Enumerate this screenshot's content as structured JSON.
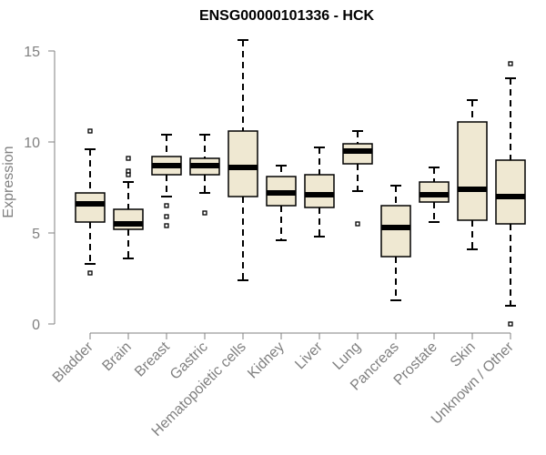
{
  "chart_data": {
    "type": "box",
    "title": "ENSG00000101336 - HCK",
    "xlabel": "",
    "ylabel": "Expression",
    "ylim": [
      0,
      15
    ],
    "yticks": [
      0,
      5,
      10,
      15
    ],
    "categories": [
      "Bladder",
      "Brain",
      "Breast",
      "Gastric",
      "Hematopoietic cells",
      "Kidney",
      "Liver",
      "Lung",
      "Pancreas",
      "Prostate",
      "Skin",
      "Unknown / Other"
    ],
    "boxes": [
      {
        "category": "Bladder",
        "whisker_low": 3.3,
        "q1": 5.6,
        "median": 6.6,
        "q3": 7.2,
        "whisker_high": 9.6,
        "outliers": [
          10.6,
          2.8
        ]
      },
      {
        "category": "Brain",
        "whisker_low": 3.6,
        "q1": 5.2,
        "median": 5.5,
        "q3": 6.3,
        "whisker_high": 7.8,
        "outliers": [
          9.1,
          8.4,
          8.2
        ]
      },
      {
        "category": "Breast",
        "whisker_low": 7.0,
        "q1": 8.2,
        "median": 8.7,
        "q3": 9.2,
        "whisker_high": 10.4,
        "outliers": [
          6.5,
          5.9,
          5.4
        ]
      },
      {
        "category": "Gastric",
        "whisker_low": 7.2,
        "q1": 8.2,
        "median": 8.7,
        "q3": 9.1,
        "whisker_high": 10.4,
        "outliers": [
          6.1
        ]
      },
      {
        "category": "Hematopoietic cells",
        "whisker_low": 2.4,
        "q1": 7.0,
        "median": 8.6,
        "q3": 10.6,
        "whisker_high": 15.6,
        "outliers": []
      },
      {
        "category": "Kidney",
        "whisker_low": 4.6,
        "q1": 6.5,
        "median": 7.2,
        "q3": 8.1,
        "whisker_high": 8.7,
        "outliers": []
      },
      {
        "category": "Liver",
        "whisker_low": 4.8,
        "q1": 6.4,
        "median": 7.1,
        "q3": 8.2,
        "whisker_high": 9.7,
        "outliers": []
      },
      {
        "category": "Lung",
        "whisker_low": 7.3,
        "q1": 8.8,
        "median": 9.5,
        "q3": 9.9,
        "whisker_high": 10.6,
        "outliers": [
          5.5
        ]
      },
      {
        "category": "Pancreas",
        "whisker_low": 1.3,
        "q1": 3.7,
        "median": 5.3,
        "q3": 6.5,
        "whisker_high": 7.6,
        "outliers": []
      },
      {
        "category": "Prostate",
        "whisker_low": 5.6,
        "q1": 6.7,
        "median": 7.1,
        "q3": 7.8,
        "whisker_high": 8.6,
        "outliers": []
      },
      {
        "category": "Skin",
        "whisker_low": 4.1,
        "q1": 5.7,
        "median": 7.4,
        "q3": 11.1,
        "whisker_high": 12.3,
        "outliers": []
      },
      {
        "category": "Unknown / Other",
        "whisker_low": 1.0,
        "q1": 5.5,
        "median": 7.0,
        "q3": 9.0,
        "whisker_high": 13.5,
        "outliers": [
          14.3,
          0.0
        ]
      }
    ],
    "box_fill": "#efe8d2",
    "box_stroke": "#000000",
    "axis_color": "#808080",
    "grid": false,
    "legend": "none"
  }
}
